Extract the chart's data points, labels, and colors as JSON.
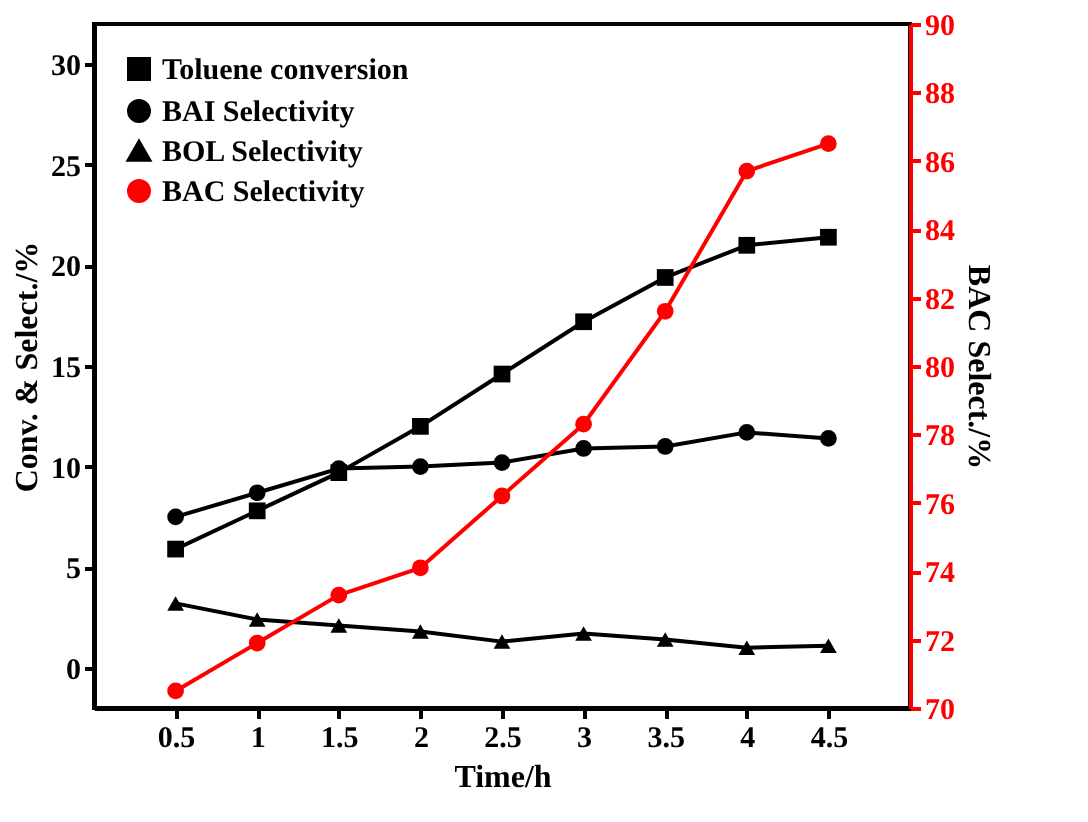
{
  "chart_data": {
    "type": "line",
    "xlabel": "Time/h",
    "ylabel": "Conv. & Select./%",
    "y2label": "BAC Select./%",
    "x": [
      0.5,
      1,
      1.5,
      2,
      2.5,
      3,
      3.5,
      4,
      4.5
    ],
    "xlim": [
      0,
      5
    ],
    "xticks": [
      0.5,
      1,
      1.5,
      2,
      2.5,
      3,
      3.5,
      4,
      4.5
    ],
    "ylim": [
      -2,
      32
    ],
    "yticks": [
      0,
      5,
      10,
      15,
      20,
      25,
      30
    ],
    "y2lim": [
      70,
      90
    ],
    "y2ticks": [
      70,
      72,
      74,
      76,
      78,
      80,
      82,
      84,
      86,
      88,
      90
    ],
    "legend": "top left",
    "grid": false,
    "series": [
      {
        "name": "Toluene conversion",
        "color": "#000000",
        "marker": "square",
        "values": [
          5.9,
          7.8,
          9.7,
          12.0,
          14.6,
          17.2,
          19.4,
          21.0,
          21.4
        ]
      },
      {
        "name": "BAI Selectivity",
        "color": "#000000",
        "marker": "circle",
        "values": [
          7.5,
          8.7,
          9.9,
          10.0,
          10.2,
          10.9,
          11.0,
          11.7,
          11.4
        ]
      },
      {
        "name": "BOL Selectivity",
        "color": "#000000",
        "marker": "triangle",
        "values": [
          3.2,
          2.4,
          2.1,
          1.8,
          1.3,
          1.7,
          1.4,
          1.0,
          1.1
        ]
      },
      {
        "name": "BAC Selectivity",
        "color": "#ff0000",
        "marker": "circle",
        "axis": "y2",
        "values": [
          70.5,
          71.9,
          73.3,
          74.1,
          76.2,
          78.3,
          81.6,
          85.7,
          86.5
        ]
      }
    ]
  }
}
